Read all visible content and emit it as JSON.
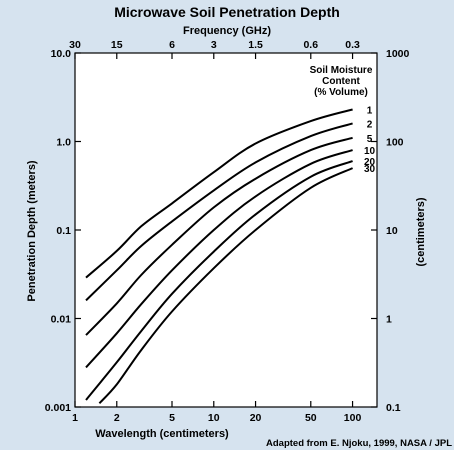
{
  "chart_data": {
    "type": "line",
    "title": "Microwave Soil Penetration Depth",
    "top_axis": {
      "label": "Frequency (GHz)",
      "ticks": [
        {
          "label": "30",
          "wavelength_cm": 1
        },
        {
          "label": "15",
          "wavelength_cm": 2
        },
        {
          "label": "6",
          "wavelength_cm": 5
        },
        {
          "label": "3",
          "wavelength_cm": 10
        },
        {
          "label": "1.5",
          "wavelength_cm": 20
        },
        {
          "label": "0.6",
          "wavelength_cm": 50
        },
        {
          "label": "0.3",
          "wavelength_cm": 100
        }
      ]
    },
    "xlabel": "Wavelength (centimeters)",
    "x_scale": "log",
    "xlim": [
      1,
      150
    ],
    "xticks": [
      {
        "label": "1",
        "value": 1
      },
      {
        "label": "2",
        "value": 2
      },
      {
        "label": "5",
        "value": 5
      },
      {
        "label": "10",
        "value": 10
      },
      {
        "label": "20",
        "value": 20
      },
      {
        "label": "50",
        "value": 50
      },
      {
        "label": "100",
        "value": 100
      }
    ],
    "ylabel": "Penetration Depth (meters)",
    "y_scale": "log",
    "ylim": [
      0.001,
      10
    ],
    "yticks": [
      {
        "label": "0.001",
        "value": 0.001
      },
      {
        "label": "0.01",
        "value": 0.01
      },
      {
        "label": "0.1",
        "value": 0.1
      },
      {
        "label": "1.0",
        "value": 1
      },
      {
        "label": "10.0",
        "value": 10
      }
    ],
    "right_axis": {
      "label": "(centimeters)",
      "ticks": [
        {
          "label": "0.1",
          "value_m": 0.001
        },
        {
          "label": "1",
          "value_m": 0.01
        },
        {
          "label": "10",
          "value_m": 0.1
        },
        {
          "label": "100",
          "value_m": 1
        },
        {
          "label": "1000",
          "value_m": 10
        }
      ]
    },
    "legend_title": [
      "Soil Moisture",
      "Content",
      "(% Volume)"
    ],
    "legend_placement": "top-right",
    "source": "Adapted from E. Njoku, 1999, NASA / JPL",
    "line_color": "#000000",
    "background_color": "#d6e3ef",
    "series": [
      {
        "name": "1",
        "points": [
          [
            1.2,
            0.029
          ],
          [
            2,
            0.058
          ],
          [
            3,
            0.11
          ],
          [
            5,
            0.2
          ],
          [
            10,
            0.45
          ],
          [
            20,
            0.95
          ],
          [
            50,
            1.7
          ],
          [
            100,
            2.3
          ]
        ]
      },
      {
        "name": "2",
        "points": [
          [
            1.2,
            0.016
          ],
          [
            2,
            0.035
          ],
          [
            3,
            0.066
          ],
          [
            5,
            0.125
          ],
          [
            10,
            0.28
          ],
          [
            20,
            0.58
          ],
          [
            50,
            1.15
          ],
          [
            100,
            1.6
          ]
        ]
      },
      {
        "name": "5",
        "points": [
          [
            1.2,
            0.0065
          ],
          [
            2,
            0.0148
          ],
          [
            3,
            0.031
          ],
          [
            5,
            0.068
          ],
          [
            10,
            0.18
          ],
          [
            20,
            0.38
          ],
          [
            50,
            0.8
          ],
          [
            100,
            1.1
          ]
        ]
      },
      {
        "name": "10",
        "points": [
          [
            1.2,
            0.0028
          ],
          [
            2,
            0.0068
          ],
          [
            3,
            0.0145
          ],
          [
            5,
            0.035
          ],
          [
            10,
            0.1
          ],
          [
            20,
            0.24
          ],
          [
            50,
            0.56
          ],
          [
            100,
            0.8
          ]
        ]
      },
      {
        "name": "20",
        "points": [
          [
            1.2,
            0.0012
          ],
          [
            2,
            0.0032
          ],
          [
            3,
            0.0072
          ],
          [
            5,
            0.019
          ],
          [
            10,
            0.057
          ],
          [
            20,
            0.15
          ],
          [
            50,
            0.4
          ],
          [
            100,
            0.6
          ]
        ]
      },
      {
        "name": "30",
        "points": [
          [
            1.5,
            0.0011
          ],
          [
            2,
            0.0018
          ],
          [
            3,
            0.0044
          ],
          [
            5,
            0.012
          ],
          [
            10,
            0.037
          ],
          [
            20,
            0.1
          ],
          [
            50,
            0.3
          ],
          [
            100,
            0.5
          ]
        ]
      }
    ]
  }
}
